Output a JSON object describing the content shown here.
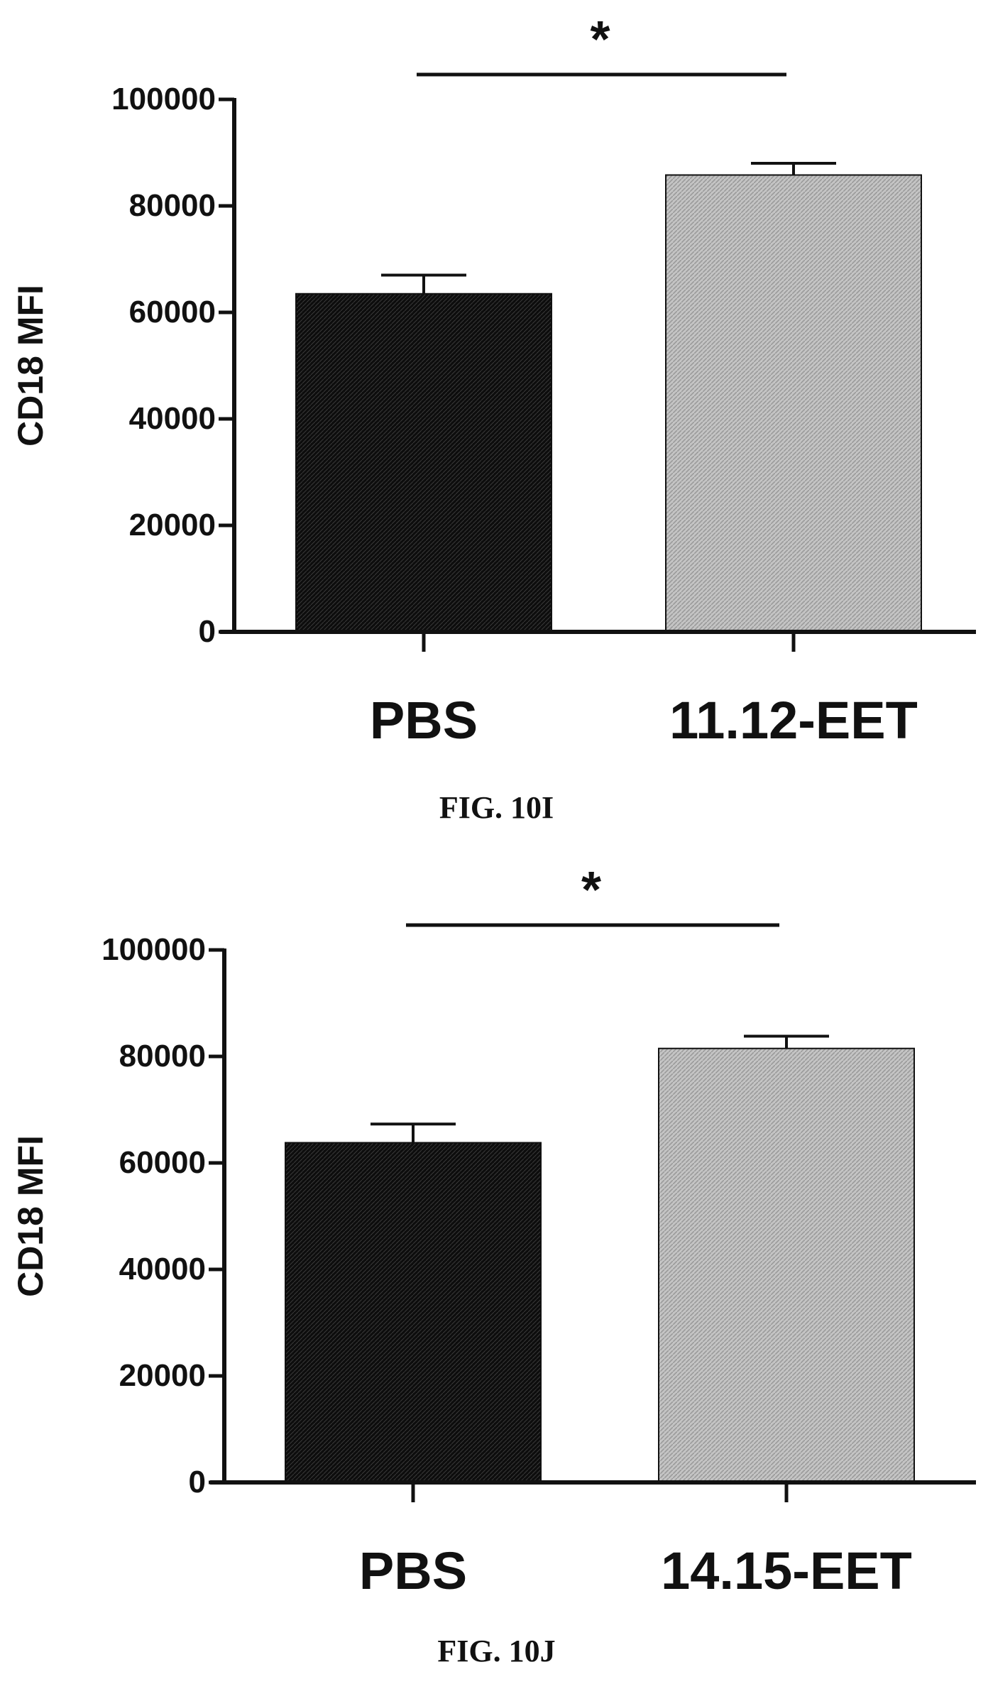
{
  "figures": [
    {
      "caption": "FIG. 10I"
    },
    {
      "caption": "FIG. 10J"
    }
  ],
  "colors": {
    "pbs_bar": "#111111",
    "treatment_bar": "#bdbdbd",
    "axis": "#111111",
    "text": "#111111"
  },
  "chart_data": [
    {
      "type": "bar",
      "categories": [
        "PBS",
        "11.12-EET"
      ],
      "values": [
        63500,
        85800
      ],
      "error": [
        3500,
        2200
      ],
      "ylabel": "CD18 MFI",
      "ylim": [
        0,
        100000
      ],
      "yticks": [
        0,
        20000,
        40000,
        60000,
        80000,
        100000
      ],
      "ytick_labels": [
        "0",
        "20000",
        "40000",
        "60000",
        "80000",
        "100000"
      ],
      "significance": "*",
      "grid": false
    },
    {
      "type": "bar",
      "categories": [
        "PBS",
        "14.15-EET"
      ],
      "values": [
        63800,
        81500
      ],
      "error": [
        3500,
        2300
      ],
      "ylabel": "CD18 MFI",
      "ylim": [
        0,
        100000
      ],
      "yticks": [
        0,
        20000,
        40000,
        60000,
        80000,
        100000
      ],
      "ytick_labels": [
        "0",
        "20000",
        "40000",
        "60000",
        "80000",
        "100000"
      ],
      "significance": "*",
      "grid": false
    }
  ]
}
